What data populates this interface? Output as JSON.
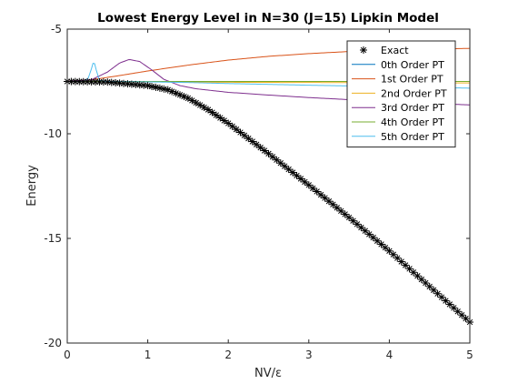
{
  "chart_data": {
    "type": "line",
    "title": "Lowest Energy Level in N=30 (J=15) Lipkin Model",
    "xlabel": "NV/ε",
    "ylabel": "Energy",
    "xlim": [
      0,
      5
    ],
    "ylim": [
      -20,
      -5
    ],
    "xticks": [
      0,
      1,
      2,
      3,
      4,
      5
    ],
    "yticks": [
      -20,
      -15,
      -10,
      -5
    ],
    "grid": false,
    "legend_position": "top-right",
    "series": [
      {
        "name": "Exact",
        "style": "markers",
        "marker": "asterisk",
        "color": "#000000",
        "x": [
          0,
          0.5,
          1.0,
          1.25,
          1.5,
          1.75,
          2.0,
          2.5,
          3.0,
          3.5,
          4.0,
          4.5,
          5.0
        ],
        "y": [
          -7.5,
          -7.53,
          -7.7,
          -7.9,
          -8.3,
          -8.85,
          -9.5,
          -10.95,
          -12.45,
          -14.0,
          -15.6,
          -17.3,
          -19.0
        ]
      },
      {
        "name": "0th Order PT",
        "style": "line",
        "color": "#0072bd",
        "x": [
          0,
          5
        ],
        "y": [
          -7.5,
          -7.5
        ]
      },
      {
        "name": "1st Order PT",
        "style": "line",
        "color": "#d95319",
        "x": [
          0,
          0.3,
          0.6,
          1.0,
          1.5,
          2.0,
          2.5,
          3.0,
          3.5,
          4.0,
          4.5,
          5.0
        ],
        "y": [
          -7.5,
          -7.42,
          -7.25,
          -7.0,
          -6.72,
          -6.48,
          -6.3,
          -6.17,
          -6.07,
          -6.0,
          -5.96,
          -5.92
        ]
      },
      {
        "name": "2nd Order PT",
        "style": "line",
        "color": "#edb120",
        "x": [
          0,
          1,
          2,
          3,
          4,
          5
        ],
        "y": [
          -7.5,
          -7.52,
          -7.54,
          -7.55,
          -7.56,
          -7.57
        ]
      },
      {
        "name": "3rd Order PT",
        "style": "line",
        "color": "#7e2f8e",
        "x": [
          0,
          0.3,
          0.5,
          0.65,
          0.77,
          0.9,
          1.05,
          1.2,
          1.4,
          1.6,
          2.0,
          2.5,
          3.0,
          3.5,
          4.0,
          4.5,
          5.0
        ],
        "y": [
          -7.5,
          -7.42,
          -7.05,
          -6.62,
          -6.45,
          -6.55,
          -6.95,
          -7.4,
          -7.7,
          -7.85,
          -8.02,
          -8.15,
          -8.27,
          -8.37,
          -8.46,
          -8.55,
          -8.62
        ]
      },
      {
        "name": "4th Order PT",
        "style": "line",
        "color": "#77ac30",
        "x": [
          0,
          1,
          2,
          3,
          4,
          5
        ],
        "y": [
          -7.5,
          -7.5,
          -7.5,
          -7.5,
          -7.5,
          -7.5
        ]
      },
      {
        "name": "5th Order PT",
        "style": "line",
        "color": "#4dbeee",
        "x": [
          0,
          0.2,
          0.26,
          0.3,
          0.33,
          0.36,
          0.4,
          0.5,
          1.0,
          1.5,
          2.0,
          3.0,
          4.0,
          5.0
        ],
        "y": [
          -7.5,
          -7.5,
          -7.35,
          -6.9,
          -6.5,
          -6.95,
          -7.45,
          -7.5,
          -7.52,
          -7.55,
          -7.6,
          -7.68,
          -7.75,
          -7.82
        ]
      }
    ]
  }
}
